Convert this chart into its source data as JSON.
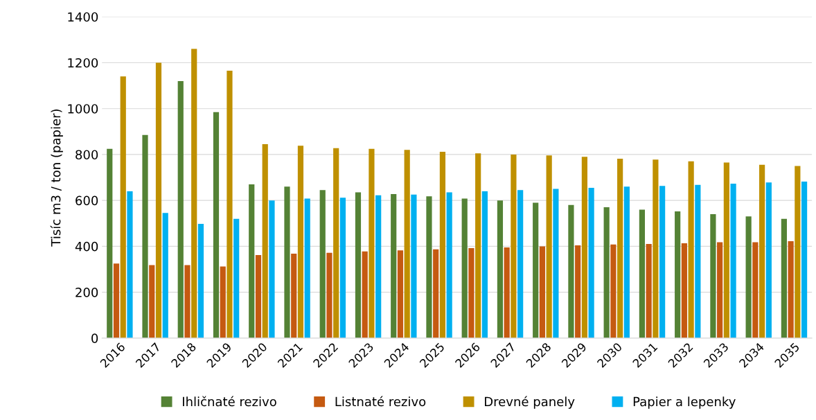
{
  "chart_data": {
    "type": "bar",
    "ylabel": "Tisíc m3 / ton (papier)",
    "categories": [
      "2016",
      "2017",
      "2018",
      "2019",
      "2020",
      "2021",
      "2022",
      "2023",
      "2024",
      "2025",
      "2026",
      "2027",
      "2028",
      "2029",
      "2030",
      "2031",
      "2032",
      "2033",
      "2034",
      "2035"
    ],
    "series": [
      {
        "name": "Ihličnaté rezivo",
        "color": "#548235",
        "values": [
          825,
          885,
          1120,
          985,
          670,
          660,
          645,
          635,
          628,
          618,
          608,
          600,
          590,
          580,
          570,
          560,
          552,
          540,
          530,
          520
        ]
      },
      {
        "name": "Listnaté rezivo",
        "color": "#c55a11",
        "values": [
          325,
          318,
          318,
          312,
          362,
          368,
          372,
          378,
          382,
          387,
          392,
          395,
          400,
          404,
          408,
          410,
          413,
          418,
          418,
          422
        ]
      },
      {
        "name": "Drevné panely",
        "color": "#bf9000",
        "values": [
          1140,
          1200,
          1260,
          1165,
          845,
          838,
          828,
          825,
          820,
          812,
          805,
          800,
          796,
          790,
          782,
          778,
          770,
          765,
          755,
          750
        ]
      },
      {
        "name": "Papier a lepenky",
        "color": "#00b0f0",
        "values": [
          640,
          545,
          498,
          520,
          600,
          608,
          612,
          622,
          625,
          635,
          640,
          645,
          650,
          655,
          660,
          663,
          668,
          673,
          678,
          682
        ]
      }
    ],
    "ylim": [
      0,
      1400
    ],
    "yticks": [
      0,
      200,
      400,
      600,
      800,
      1000,
      1200,
      1400
    ],
    "grid": "y",
    "legend": "bottom"
  }
}
